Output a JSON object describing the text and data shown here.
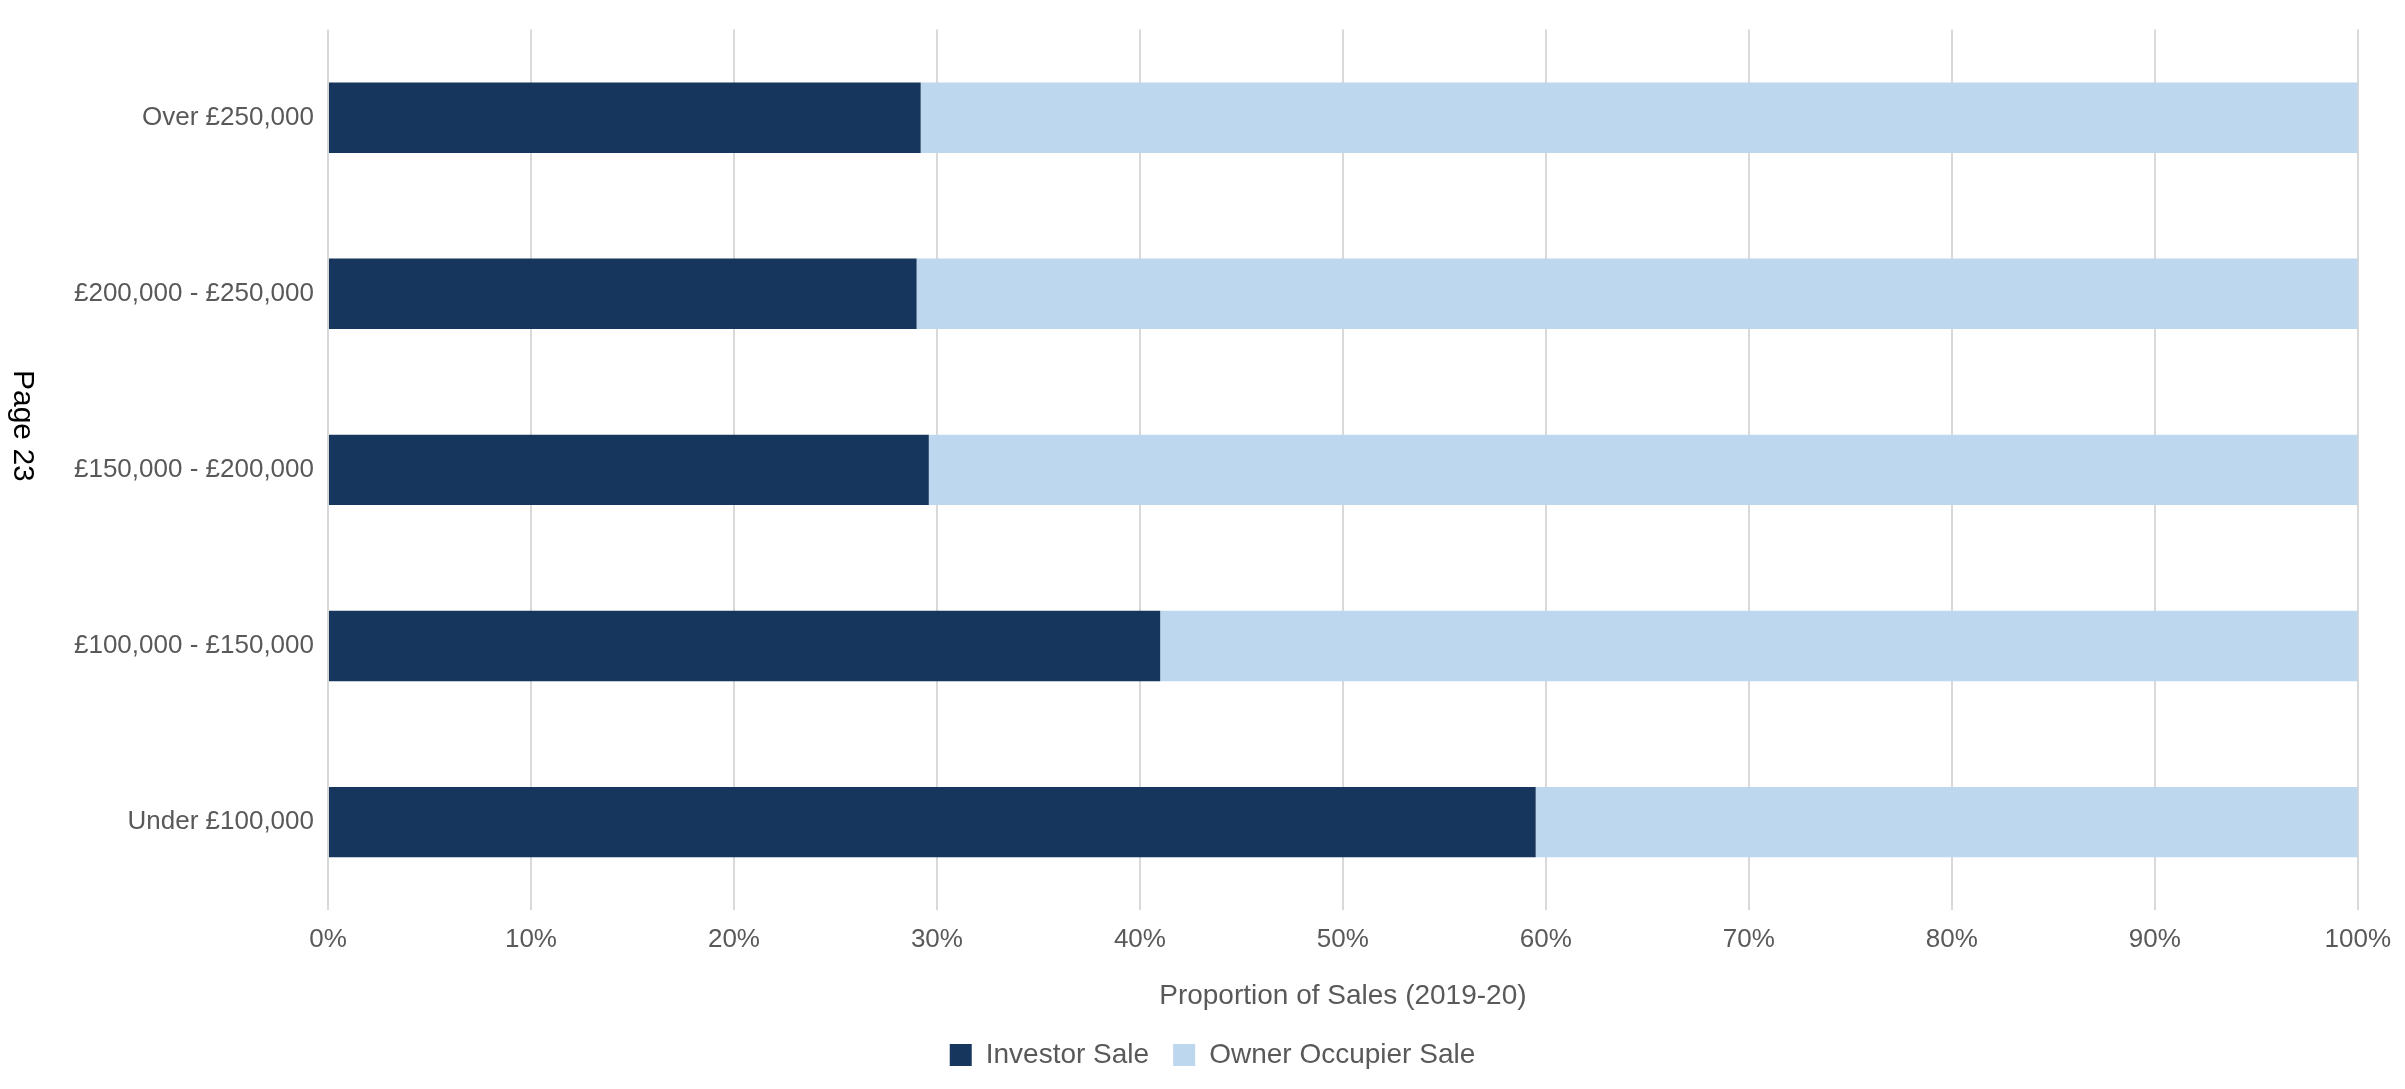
{
  "chart_data": {
    "type": "bar",
    "orientation": "horizontal",
    "stacked": true,
    "categories": [
      "Over £250,000",
      "£200,000 - £250,000",
      "£150,000 - £200,000",
      "£100,000 - £150,000",
      "Under £100,000"
    ],
    "series": [
      {
        "name": "Investor Sale",
        "color": "#17365d",
        "values": [
          29.2,
          29.0,
          29.6,
          41.0,
          59.5
        ]
      },
      {
        "name": "Owner Occupier Sale",
        "color": "#bdd7ee",
        "values": [
          70.8,
          71.0,
          70.4,
          59.0,
          40.5
        ]
      }
    ],
    "xlabel": "Proportion of Sales (2019-20)",
    "xlim": [
      0,
      100
    ],
    "xticks": [
      {
        "value": 0,
        "label": "0%"
      },
      {
        "value": 10,
        "label": "10%"
      },
      {
        "value": 20,
        "label": "20%"
      },
      {
        "value": 30,
        "label": "30%"
      },
      {
        "value": 40,
        "label": "40%"
      },
      {
        "value": 50,
        "label": "50%"
      },
      {
        "value": 60,
        "label": "60%"
      },
      {
        "value": 70,
        "label": "70%"
      },
      {
        "value": 80,
        "label": "80%"
      },
      {
        "value": 90,
        "label": "90%"
      },
      {
        "value": 100,
        "label": "100%"
      }
    ],
    "grid": "x",
    "legend": "bottom",
    "annotations": [
      "Page 23"
    ]
  }
}
